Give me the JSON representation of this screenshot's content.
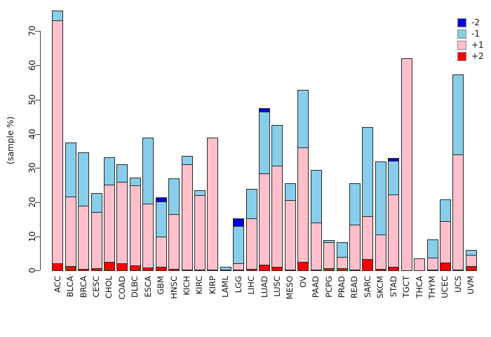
{
  "chart_data": {
    "type": "bar",
    "stacked": true,
    "title": "",
    "ylabel": "(sample %)",
    "ylim": [
      0,
      70
    ],
    "yticks": [
      0,
      10,
      20,
      30,
      40,
      50,
      60,
      70
    ],
    "grid": false,
    "legend_position": "top-right",
    "stack_order_bottom_to_top": [
      "+2",
      "+1",
      "-1",
      "-2"
    ],
    "categories": [
      "ACC",
      "BLCA",
      "BRCA",
      "CESC",
      "CHOL",
      "COAD",
      "DLBC",
      "ESCA",
      "GBM",
      "HNSC",
      "KICH",
      "KIRC",
      "KIRP",
      "LAML",
      "LGG",
      "LIHC",
      "LUAD",
      "LUSC",
      "MESO",
      "OV",
      "PAAD",
      "PCPG",
      "PRAD",
      "READ",
      "SARC",
      "SKCM",
      "STAD",
      "TGCT",
      "THCA",
      "THYM",
      "UCEC",
      "UCS",
      "UVM"
    ],
    "series": [
      {
        "name": "-2",
        "color": "#0000DD",
        "values": [
          0,
          0,
          0,
          0,
          0,
          0,
          0,
          0,
          1.0,
          0,
          0,
          0,
          0,
          0,
          2.2,
          0,
          0.8,
          0,
          0,
          0,
          0,
          0,
          0,
          0,
          0,
          0,
          0.8,
          0,
          0,
          0,
          0,
          0,
          0
        ]
      },
      {
        "name": "-1",
        "color": "#87CEEB",
        "values": [
          2.7,
          15.5,
          15.4,
          5.3,
          7.8,
          5.0,
          2.1,
          19.2,
          10.3,
          10.4,
          2.2,
          1.2,
          0,
          0.5,
          10.7,
          8.3,
          18.1,
          11.8,
          4.8,
          16.6,
          15.3,
          0.3,
          4.2,
          11.8,
          26.0,
          21.0,
          9.8,
          0,
          0,
          5.0,
          6.3,
          23.2,
          1.3
        ]
      },
      {
        "name": "+1",
        "color": "#FFC0CB",
        "values": [
          71.2,
          20.4,
          18.5,
          16.4,
          22.6,
          23.8,
          23.3,
          18.6,
          8.9,
          16.0,
          30.9,
          21.8,
          38.4,
          0.3,
          2.0,
          14.8,
          26.5,
          29.6,
          20.3,
          33.4,
          13.7,
          7.55,
          3.2,
          13.3,
          12.5,
          10.2,
          21.1,
          61.9,
          3.3,
          3.5,
          12.1,
          33.6,
          3.3
        ]
      },
      {
        "name": "+2",
        "color": "#FF0000",
        "values": [
          2.0,
          1.3,
          0.5,
          0.75,
          2.6,
          2.1,
          1.6,
          0.9,
          1.0,
          0.4,
          0.2,
          0.2,
          0.3,
          0,
          0.2,
          0.5,
          1.8,
          1.0,
          0.3,
          2.6,
          0.3,
          0.75,
          0.7,
          0.2,
          3.3,
          0.4,
          1.1,
          0,
          0,
          0.3,
          2.3,
          0.3,
          1.3
        ]
      }
    ]
  }
}
